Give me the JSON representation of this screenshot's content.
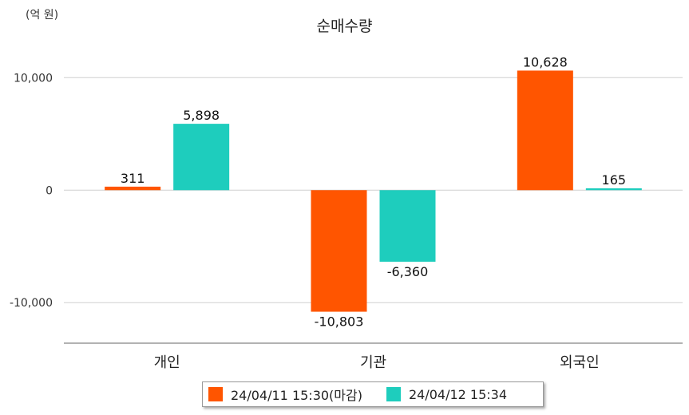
{
  "chart_data": {
    "type": "bar",
    "title": "순매수량",
    "unit_label": "(억 원)",
    "categories": [
      "개인",
      "기관",
      "외국인"
    ],
    "series": [
      {
        "name": "24/04/11 15:30(마감)",
        "values": [
          311,
          -10803,
          10628
        ],
        "labels": [
          "311",
          "-10,803",
          "10,628"
        ],
        "color": "#ff5500"
      },
      {
        "name": "24/04/12 15:34",
        "values": [
          5898,
          -6360,
          165
        ],
        "labels": [
          "5,898",
          "-6,360",
          "165"
        ],
        "color": "#1ecdbd"
      }
    ],
    "yticks": [
      10000,
      0,
      -10000
    ],
    "ytick_labels": [
      "10,000",
      "0",
      "-10,000"
    ],
    "ylim": [
      -13600,
      13000
    ],
    "grid": true,
    "legend_position": "bottom"
  }
}
